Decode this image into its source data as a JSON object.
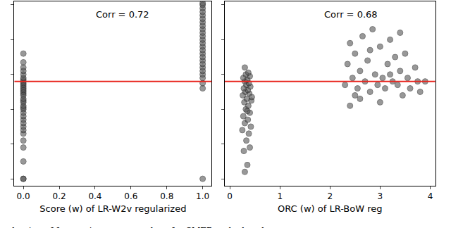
{
  "chart_data": [
    {
      "type": "scatter",
      "x_label": "Score (w) of LR-W2v regularized",
      "annotation": "Corr = 0.72",
      "x": [
        0,
        0,
        0,
        0,
        0,
        0,
        0,
        0,
        0,
        0,
        0,
        0,
        0,
        0,
        0,
        0,
        0,
        0,
        0,
        0,
        0,
        0,
        0,
        0,
        0,
        0,
        0,
        0,
        0,
        0,
        0,
        0,
        0,
        0,
        1,
        1,
        1,
        1,
        1,
        1,
        1,
        1,
        1,
        1,
        1,
        1,
        1,
        1,
        1,
        1,
        1,
        1,
        1,
        1,
        1,
        1,
        1,
        1,
        1,
        1
      ],
      "values": [
        0,
        0,
        0.5,
        0.9,
        1.1,
        1.3,
        1.4,
        1.5,
        1.6,
        1.7,
        1.8,
        1.9,
        2.0,
        2.05,
        2.1,
        2.2,
        2.25,
        2.3,
        2.4,
        2.45,
        2.5,
        2.55,
        2.6,
        2.65,
        2.7,
        2.75,
        2.8,
        2.85,
        2.9,
        3.0,
        3.1,
        3.2,
        3.35,
        3.6,
        0,
        2.6,
        2.75,
        2.9,
        3.0,
        3.1,
        3.2,
        3.3,
        3.4,
        3.5,
        3.6,
        3.7,
        3.8,
        3.9,
        4.0,
        4.1,
        4.2,
        4.3,
        4.4,
        4.5,
        4.6,
        4.7,
        4.8,
        4.9,
        5.0,
        5.05
      ],
      "color": "#555555",
      "marker": "circle",
      "reference_line": {
        "value": 2.8,
        "color": "#e8261f"
      },
      "xlim": [
        -0.05,
        1.05
      ],
      "xticks": [
        {
          "value": 0,
          "label": "0.0"
        },
        {
          "value": 0.2,
          "label": "0.2"
        },
        {
          "value": 0.4,
          "label": "0.4"
        },
        {
          "value": 0.6,
          "label": "0.6"
        },
        {
          "value": 0.8,
          "label": "0.8"
        },
        {
          "value": 1,
          "label": "1.0"
        }
      ],
      "ylim": [
        -0.2,
        5.1
      ],
      "yticks": [
        0,
        1,
        2,
        3,
        4,
        5
      ],
      "tick_labels": "x",
      "grid": false
    },
    {
      "type": "scatter",
      "x_label": "ORC (w) of LR-BoW reg",
      "annotation": "Corr = 0.68",
      "x": [
        0.3,
        0.35,
        0.28,
        0.4,
        0.33,
        0.38,
        0.25,
        0.42,
        0.3,
        0.36,
        0.27,
        0.4,
        0.32,
        0.37,
        0.29,
        0.43,
        0.34,
        0.26,
        0.39,
        0.31,
        0.36,
        0.28,
        0.41,
        0.33,
        0.38,
        0.3,
        0.35,
        0.27,
        0.4,
        0.32,
        0.37,
        0.3,
        0.44,
        0.35,
        2.3,
        2.35,
        2.4,
        2.45,
        2.5,
        2.55,
        2.6,
        2.65,
        2.7,
        2.75,
        2.8,
        2.85,
        2.9,
        2.95,
        3.0,
        3.05,
        3.1,
        3.15,
        3.2,
        3.25,
        3.3,
        3.35,
        3.4,
        3.45,
        3.5,
        3.55,
        3.6,
        3.7,
        3.75,
        3.8,
        3.9,
        2.4,
        2.6,
        2.8,
        3.0,
        3.2,
        3.4,
        2.5
      ],
      "values": [
        0.2,
        0.4,
        0.8,
        0.9,
        1.1,
        1.3,
        1.4,
        1.5,
        1.6,
        1.7,
        1.8,
        1.9,
        2.0,
        2.1,
        2.2,
        2.25,
        2.3,
        2.4,
        2.45,
        2.5,
        2.55,
        2.6,
        2.65,
        2.7,
        2.75,
        2.8,
        2.85,
        2.9,
        2.95,
        3.0,
        3.05,
        3.2,
        2.35,
        1.95,
        2.7,
        3.3,
        2.1,
        2.9,
        3.6,
        2.6,
        3.1,
        4.1,
        2.8,
        3.4,
        2.5,
        4.3,
        3.0,
        2.7,
        3.8,
        2.9,
        2.6,
        3.3,
        4.0,
        2.8,
        3.5,
        2.7,
        3.1,
        2.4,
        3.6,
        2.9,
        2.6,
        3.2,
        2.8,
        2.5,
        2.8,
        3.9,
        2.3,
        3.7,
        2.2,
        3.0,
        4.2,
        2.4
      ],
      "color": "#555555",
      "marker": "circle",
      "reference_line": {
        "value": 2.8,
        "color": "#e8261f"
      },
      "xlim": [
        -0.1,
        4.1
      ],
      "xticks": [
        0,
        1,
        2,
        3,
        4
      ],
      "ylim": [
        -0.2,
        5.1
      ],
      "yticks": [
        0,
        1,
        2,
        3,
        4,
        5
      ],
      "tick_labels": "x",
      "grid": false
    }
  ],
  "caption": "aluation of feature importance values for SMER and a basel"
}
